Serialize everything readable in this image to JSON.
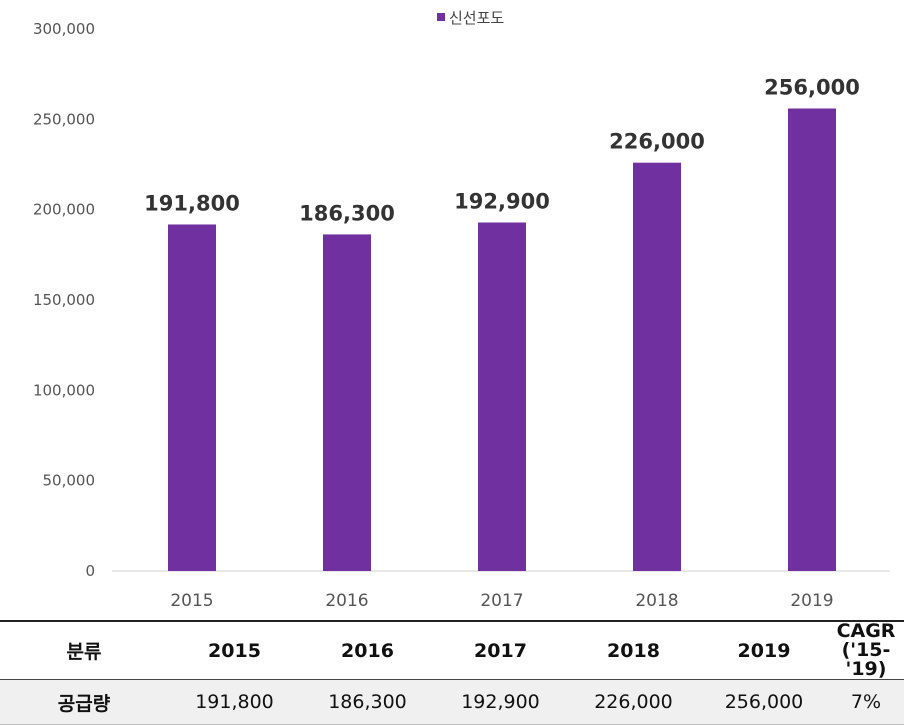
{
  "legend": {
    "label": "신선포도",
    "color": "#7030a0"
  },
  "chart_data": {
    "type": "bar",
    "categories": [
      "2015",
      "2016",
      "2017",
      "2018",
      "2019"
    ],
    "series": [
      {
        "name": "신선포도",
        "values": [
          191800,
          186300,
          192900,
          226000,
          256000
        ]
      }
    ],
    "data_labels": [
      "191,800",
      "186,300",
      "192,900",
      "226,000",
      "256,000"
    ],
    "y_ticks": [
      "0",
      "50,000",
      "100,000",
      "150,000",
      "200,000",
      "250,000",
      "300,000"
    ],
    "ylim": [
      0,
      300000
    ],
    "grid": false,
    "legend_position": "top-center",
    "bar_color": "#7030a0"
  },
  "table": {
    "header": {
      "label": "분류",
      "years": [
        "2015",
        "2016",
        "2017",
        "2018",
        "2019"
      ],
      "cagr_line1": "CAGR",
      "cagr_line2": "('15-'19)"
    },
    "row": {
      "label": "공급량",
      "values": [
        "191,800",
        "186,300",
        "192,900",
        "226,000",
        "256,000"
      ],
      "cagr": "7%"
    }
  }
}
